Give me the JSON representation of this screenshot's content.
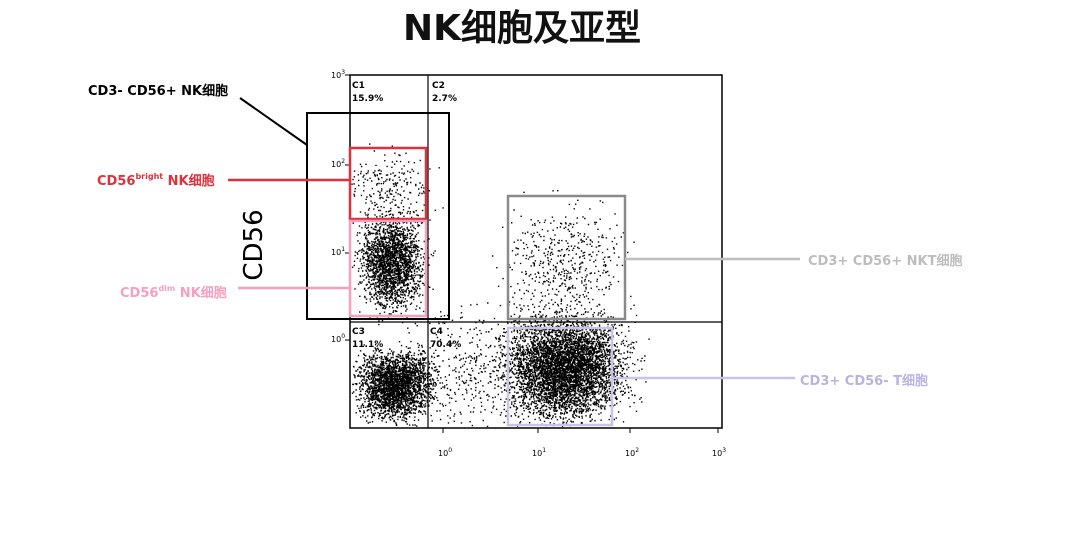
{
  "title": "NK细胞及亚型",
  "y_axis_label": "CD56",
  "y_ticks": [
    {
      "base": "10",
      "exponent": "3"
    },
    {
      "base": "10",
      "exponent": "2"
    },
    {
      "base": "10",
      "exponent": "1"
    },
    {
      "base": "10",
      "exponent": "0"
    }
  ],
  "x_ticks": [
    {
      "base": "10",
      "exponent": "0"
    },
    {
      "base": "10",
      "exponent": "1"
    },
    {
      "base": "10",
      "exponent": "2"
    },
    {
      "base": "10",
      "exponent": "3"
    }
  ],
  "quadrants": [
    {
      "name": "C1",
      "percent": "15.9%"
    },
    {
      "name": "C2",
      "percent": "2.7%"
    },
    {
      "name": "C3",
      "percent": "11.1%"
    },
    {
      "name": "C4",
      "percent": "70.4%"
    }
  ],
  "gates": [
    {
      "label": "CD3- CD56+ NK细胞"
    },
    {
      "prefix": "CD56",
      "superscript": "bright",
      "suffix": " NK细胞"
    },
    {
      "prefix": "CD56",
      "superscript": "dim",
      "suffix": " NK细胞"
    },
    {
      "label": "CD3+ CD56+ NKT细胞"
    },
    {
      "label": "CD3+ CD56- T细胞"
    }
  ]
}
